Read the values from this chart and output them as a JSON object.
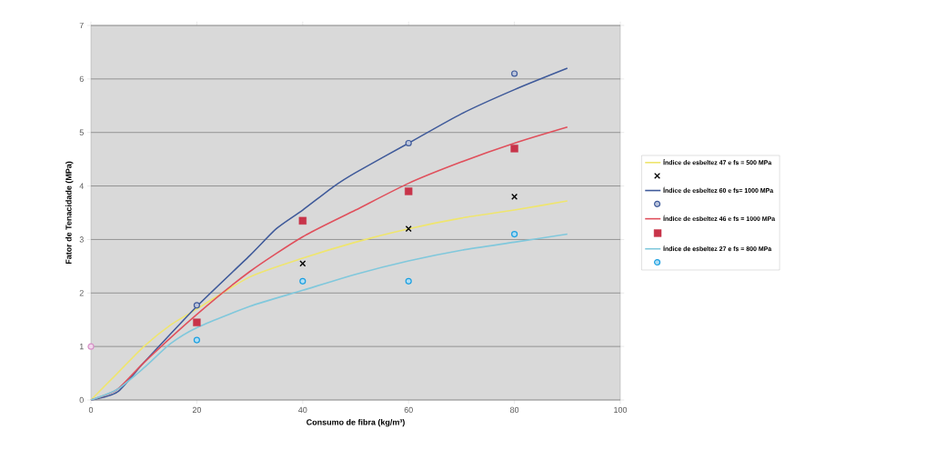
{
  "chart_data": {
    "type": "line",
    "xlabel": "Consumo de fibra (kg/m³)",
    "ylabel": "Fator de Tenacidade (MPa)",
    "xlim": [
      0,
      100
    ],
    "xticks": [
      0,
      20,
      40,
      60,
      80,
      100
    ],
    "ylim": [
      0,
      7
    ],
    "yticks": [
      0,
      1,
      2,
      3,
      4,
      5,
      6,
      7
    ],
    "grid": "y",
    "legend": "right",
    "line_style": "solid",
    "series": [
      {
        "name": "Índice de esbeltez 47 e fs = 500 MPa",
        "marker": "none",
        "color": "#efe56e",
        "x": [
          0,
          5,
          10,
          15,
          20,
          30,
          40,
          50,
          60,
          70,
          80,
          90
        ],
        "values": [
          0,
          0.5,
          1.0,
          1.4,
          1.7,
          2.3,
          2.65,
          2.95,
          3.2,
          3.4,
          3.55,
          3.72
        ]
      },
      {
        "type": "scatter",
        "marker": "cross",
        "color": "#000000",
        "x": [
          40,
          60,
          80
        ],
        "values": [
          2.55,
          3.2,
          3.8
        ]
      },
      {
        "name": "Índice de esbeltez 60 e fs= 1000 MPa",
        "marker": "none",
        "color": "#3f5a9a",
        "x": [
          0,
          5,
          10,
          20,
          30,
          35,
          40,
          46,
          50,
          60,
          70,
          80,
          90
        ],
        "values": [
          0,
          0.15,
          0.7,
          1.75,
          2.7,
          3.2,
          3.55,
          4.0,
          4.25,
          4.8,
          5.35,
          5.8,
          6.2
        ]
      },
      {
        "type": "scatter",
        "marker": "circle",
        "color": "#3f5a9a",
        "x": [
          20,
          60,
          80
        ],
        "values": [
          1.77,
          4.8,
          6.1
        ]
      },
      {
        "name": "Índice de esbeltez 46 e fs = 1000 MPa",
        "marker": "none",
        "color": "#e0505c",
        "x": [
          0,
          5,
          10,
          20,
          30,
          40,
          50,
          60,
          70,
          80,
          90
        ],
        "values": [
          0,
          0.2,
          0.7,
          1.6,
          2.4,
          3.05,
          3.55,
          4.05,
          4.45,
          4.8,
          5.1
        ]
      },
      {
        "type": "scatter",
        "marker": "square",
        "color": "#c8344a",
        "x": [
          20,
          40,
          60,
          80
        ],
        "values": [
          1.45,
          3.35,
          3.9,
          4.7
        ]
      },
      {
        "name": "Índice de esbeltez 27 e fs = 800 MPa",
        "marker": "none",
        "color": "#80c8dc",
        "x": [
          0,
          5,
          10,
          15,
          20,
          30,
          40,
          50,
          60,
          70,
          80,
          90
        ],
        "values": [
          0,
          0.2,
          0.6,
          1.05,
          1.35,
          1.75,
          2.05,
          2.35,
          2.6,
          2.8,
          2.95,
          3.1
        ]
      },
      {
        "type": "scatter",
        "marker": "circle",
        "color": "#1a9fe0",
        "x": [
          20,
          40,
          60,
          80
        ],
        "values": [
          1.12,
          2.22,
          2.22,
          3.1
        ]
      },
      {
        "type": "scatter",
        "marker": "circle",
        "color": "#d890c8",
        "x": [
          0
        ],
        "values": [
          1
        ]
      }
    ]
  }
}
